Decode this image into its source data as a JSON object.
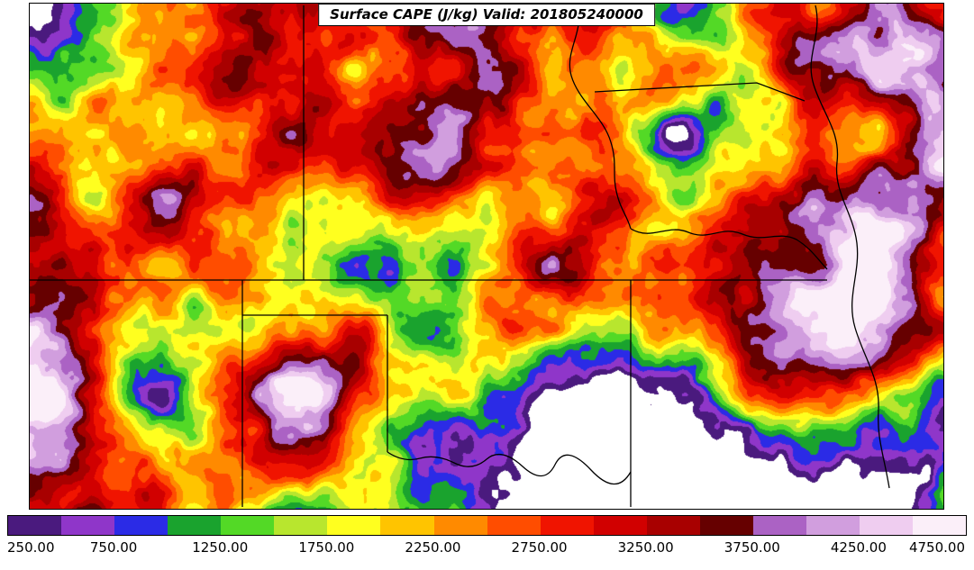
{
  "figure": {
    "title": "Surface CAPE (J/kg) Valid: 201805240000"
  },
  "chart_data": {
    "type": "heatmap",
    "subtype": "filled contour weather map",
    "title": "Surface CAPE (J/kg) Valid: 201805240000",
    "variable": "Surface CAPE",
    "units": "J/kg",
    "valid_time": "201805240000",
    "overlay": "US state borders and rivers (central Great Plains region)",
    "background_below_min": "#ffffff",
    "colorbar": {
      "orientation": "horizontal",
      "position": "bottom",
      "min": 250,
      "max": 4750,
      "contour_interval": 250,
      "tick_interval": 500,
      "tick_labels": [
        "250.00",
        "750.00",
        "1250.00",
        "1750.00",
        "2250.00",
        "2750.00",
        "3250.00",
        "3750.00",
        "4250.00",
        "4750.00"
      ],
      "levels": [
        250,
        500,
        750,
        1000,
        1250,
        1500,
        1750,
        2000,
        2250,
        2500,
        2750,
        3000,
        3250,
        3500,
        3750,
        4000,
        4250,
        4500,
        4750
      ],
      "colors": [
        "#4a1a7e",
        "#8f36c9",
        "#2b2be6",
        "#1aa32e",
        "#53d926",
        "#b8e62e",
        "#ffff1f",
        "#ffc400",
        "#ff8a00",
        "#ff4d00",
        "#f01400",
        "#d10000",
        "#a80000",
        "#660000",
        "#ab62c4",
        "#d19ede",
        "#efcdf0",
        "#fbeff9"
      ]
    }
  }
}
